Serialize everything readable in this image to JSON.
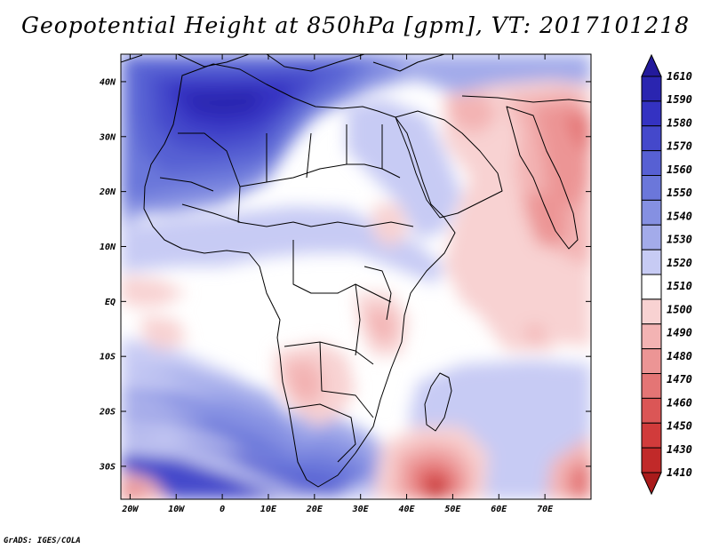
{
  "title": "Geopotential Height at 850hPa [gpm], VT: 2017101218",
  "credit": "GrADS: IGES/COLA",
  "map": {
    "lon_labels": [
      "20W",
      "10W",
      "0",
      "10E",
      "20E",
      "30E",
      "40E",
      "50E",
      "60E",
      "70E"
    ],
    "lon_values": [
      -20,
      -10,
      0,
      10,
      20,
      30,
      40,
      50,
      60,
      70
    ],
    "lat_labels": [
      "40N",
      "30N",
      "20N",
      "10N",
      "EQ",
      "10S",
      "20S",
      "30S"
    ],
    "lat_values": [
      40,
      30,
      20,
      10,
      0,
      -10,
      -20,
      -30
    ],
    "lon_range": [
      -22,
      80
    ],
    "lat_range": [
      -36,
      45
    ]
  },
  "colorbar": {
    "labels": [
      "1610",
      "1590",
      "1580",
      "1570",
      "1560",
      "1550",
      "1540",
      "1530",
      "1520",
      "1510",
      "1500",
      "1490",
      "1480",
      "1470",
      "1460",
      "1450",
      "1430",
      "1410"
    ],
    "colors": [
      "#231a9c",
      "#2a25b0",
      "#3432c2",
      "#4448cb",
      "#5760d3",
      "#6b77da",
      "#8590e2",
      "#a3abea",
      "#c7cbf4",
      "#ffffff",
      "#f8d2d2",
      "#f3b3b3",
      "#ec9595",
      "#e47575",
      "#db5656",
      "#d13b3b",
      "#c12929",
      "#aa1b1b"
    ]
  }
}
